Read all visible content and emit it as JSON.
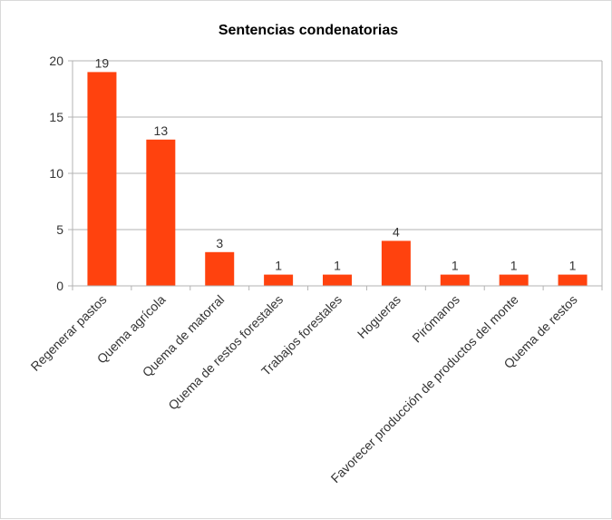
{
  "chart_data": {
    "type": "bar",
    "title": "Sentencias condenatorias",
    "xlabel": "",
    "ylabel": "",
    "categories": [
      "Regenerar pastos",
      "Quema agrícola",
      "Quema de matorral",
      "Quema de restos forestales",
      "Trabajos forestales",
      "Hogueras",
      "Pirómanos",
      "Favorecer producción de productos del monte",
      "Quema de restos"
    ],
    "values": [
      19,
      13,
      3,
      1,
      1,
      4,
      1,
      1,
      1
    ],
    "ylim": [
      0,
      20
    ],
    "yticks": [
      0,
      5,
      10,
      15,
      20
    ],
    "grid": true,
    "legend": "none",
    "bar_color": "#ff420e",
    "grid_color": "#b3b3b3"
  }
}
